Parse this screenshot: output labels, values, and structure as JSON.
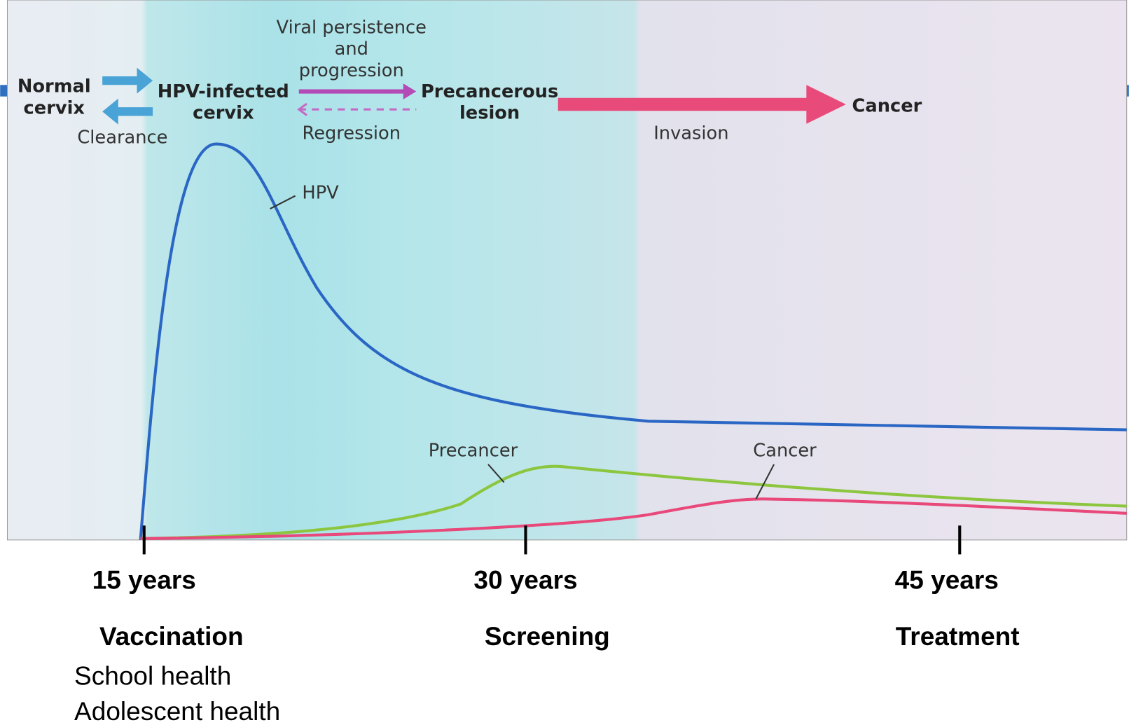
{
  "diagram": {
    "stages": {
      "normal": [
        "Normal",
        "cervix"
      ],
      "infected": [
        "HPV-infected",
        "cervix"
      ],
      "lesion": [
        "Precancerous",
        "lesion"
      ],
      "cancer": "Cancer"
    },
    "transitions": {
      "clearance": "Clearance",
      "persistence": [
        "Viral persistence",
        "and",
        "progression"
      ],
      "regression": "Regression",
      "invasion": "Invasion"
    },
    "curves": {
      "hpv": "HPV",
      "precancer": "Precancer",
      "cancer": "Cancer"
    },
    "ages": [
      "15 years",
      "30 years",
      "45 years"
    ],
    "interventions": [
      "Vaccination",
      "Screening",
      "Treatment"
    ],
    "vaccination_settings": [
      "School health",
      "Adolescent health"
    ]
  }
}
